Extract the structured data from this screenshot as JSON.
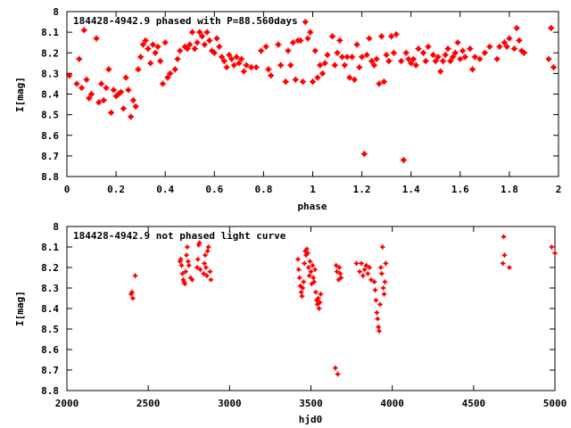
{
  "chart_data": [
    {
      "type": "scatter",
      "title": "184428-4942.9 phased with P=88.560days",
      "xlabel": "phase",
      "ylabel": "I[mag]",
      "xlim": [
        0,
        2
      ],
      "ylim": [
        8.8,
        8
      ],
      "y_inverted": true,
      "xticks": [
        0,
        0.2,
        0.4,
        0.6,
        0.8,
        1,
        1.2,
        1.4,
        1.6,
        1.8,
        2
      ],
      "xtick_labels": [
        "0",
        "0.2",
        "0.4",
        "0.6",
        "0.8",
        "1",
        "1.2",
        "1.4",
        "1.6",
        "1.8",
        "2"
      ],
      "yticks": [
        8,
        8.1,
        8.2,
        8.3,
        8.4,
        8.5,
        8.6,
        8.7,
        8.8
      ],
      "ytick_labels": [
        "8",
        "8.1",
        "8.2",
        "8.3",
        "8.4",
        "8.5",
        "8.6",
        "8.7",
        "8.8"
      ],
      "grid": false,
      "marker_color": "#ff0000",
      "series": [
        {
          "points": [
            [
              0.01,
              8.31
            ],
            [
              0.04,
              8.35
            ],
            [
              0.05,
              8.23
            ],
            [
              0.06,
              8.37
            ],
            [
              0.07,
              8.09
            ],
            [
              0.08,
              8.33
            ],
            [
              0.09,
              8.42
            ],
            [
              0.1,
              8.4
            ],
            [
              0.12,
              8.13
            ],
            [
              0.13,
              8.44
            ],
            [
              0.14,
              8.35
            ],
            [
              0.15,
              8.43
            ],
            [
              0.16,
              8.37
            ],
            [
              0.17,
              8.28
            ],
            [
              0.18,
              8.49
            ],
            [
              0.19,
              8.38
            ],
            [
              0.2,
              8.41
            ],
            [
              0.21,
              8.4
            ],
            [
              0.22,
              8.39
            ],
            [
              0.23,
              8.47
            ],
            [
              0.24,
              8.32
            ],
            [
              0.25,
              8.38
            ],
            [
              0.26,
              8.51
            ],
            [
              0.27,
              8.43
            ],
            [
              0.28,
              8.46
            ],
            [
              0.29,
              8.28
            ],
            [
              0.3,
              8.22
            ],
            [
              0.31,
              8.16
            ],
            [
              0.32,
              8.14
            ],
            [
              0.33,
              8.18
            ],
            [
              0.34,
              8.25
            ],
            [
              0.35,
              8.16
            ],
            [
              0.36,
              8.2
            ],
            [
              0.37,
              8.17
            ],
            [
              0.38,
              8.24
            ],
            [
              0.39,
              8.35
            ],
            [
              0.4,
              8.15
            ],
            [
              0.41,
              8.32
            ],
            [
              0.42,
              8.3
            ],
            [
              0.44,
              8.28
            ],
            [
              0.45,
              8.23
            ],
            [
              0.46,
              8.19
            ],
            [
              0.48,
              8.17
            ],
            [
              0.49,
              8.18
            ],
            [
              0.5,
              8.16
            ],
            [
              0.51,
              8.1
            ],
            [
              0.52,
              8.18
            ],
            [
              0.53,
              8.15
            ],
            [
              0.54,
              8.1
            ],
            [
              0.55,
              8.12
            ],
            [
              0.56,
              8.16
            ],
            [
              0.57,
              8.1
            ],
            [
              0.58,
              8.14
            ],
            [
              0.59,
              8.19
            ],
            [
              0.6,
              8.2
            ],
            [
              0.61,
              8.13
            ],
            [
              0.62,
              8.17
            ],
            [
              0.63,
              8.22
            ],
            [
              0.64,
              8.24
            ],
            [
              0.65,
              8.27
            ],
            [
              0.66,
              8.21
            ],
            [
              0.67,
              8.23
            ],
            [
              0.68,
              8.26
            ],
            [
              0.69,
              8.22
            ],
            [
              0.7,
              8.25
            ],
            [
              0.71,
              8.23
            ],
            [
              0.72,
              8.29
            ],
            [
              0.73,
              8.26
            ],
            [
              0.75,
              8.27
            ],
            [
              0.77,
              8.27
            ],
            [
              0.79,
              8.19
            ],
            [
              0.81,
              8.17
            ],
            [
              0.82,
              8.28
            ],
            [
              0.83,
              8.31
            ],
            [
              0.86,
              8.16
            ],
            [
              0.87,
              8.26
            ],
            [
              0.89,
              8.34
            ],
            [
              0.9,
              8.19
            ],
            [
              0.91,
              8.26
            ],
            [
              0.92,
              8.15
            ],
            [
              0.93,
              8.33
            ],
            [
              0.94,
              8.14
            ],
            [
              0.95,
              8.14
            ],
            [
              0.96,
              8.34
            ],
            [
              0.97,
              8.05
            ],
            [
              0.98,
              8.13
            ],
            [
              0.99,
              8.1
            ],
            [
              1.0,
              8.34
            ],
            [
              1.01,
              8.19
            ],
            [
              1.02,
              8.32
            ],
            [
              1.03,
              8.26
            ],
            [
              1.04,
              8.3
            ],
            [
              1.05,
              8.25
            ],
            [
              1.06,
              8.21
            ],
            [
              1.08,
              8.12
            ],
            [
              1.09,
              8.26
            ],
            [
              1.1,
              8.2
            ],
            [
              1.11,
              8.14
            ],
            [
              1.12,
              8.22
            ],
            [
              1.13,
              8.26
            ],
            [
              1.14,
              8.22
            ],
            [
              1.15,
              8.32
            ],
            [
              1.16,
              8.22
            ],
            [
              1.17,
              8.33
            ],
            [
              1.18,
              8.16
            ],
            [
              1.19,
              8.27
            ],
            [
              1.2,
              8.22
            ],
            [
              1.21,
              8.69
            ],
            [
              1.22,
              8.21
            ],
            [
              1.23,
              8.13
            ],
            [
              1.24,
              8.24
            ],
            [
              1.25,
              8.26
            ],
            [
              1.26,
              8.23
            ],
            [
              1.27,
              8.35
            ],
            [
              1.28,
              8.12
            ],
            [
              1.29,
              8.34
            ],
            [
              1.3,
              8.21
            ],
            [
              1.31,
              8.24
            ],
            [
              1.32,
              8.12
            ],
            [
              1.33,
              8.2
            ],
            [
              1.34,
              8.11
            ],
            [
              1.36,
              8.24
            ],
            [
              1.37,
              8.72
            ],
            [
              1.38,
              8.2
            ],
            [
              1.39,
              8.23
            ],
            [
              1.4,
              8.25
            ],
            [
              1.41,
              8.23
            ],
            [
              1.42,
              8.26
            ],
            [
              1.43,
              8.18
            ],
            [
              1.45,
              8.2
            ],
            [
              1.46,
              8.24
            ],
            [
              1.47,
              8.17
            ],
            [
              1.49,
              8.21
            ],
            [
              1.5,
              8.24
            ],
            [
              1.51,
              8.22
            ],
            [
              1.52,
              8.29
            ],
            [
              1.53,
              8.24
            ],
            [
              1.54,
              8.21
            ],
            [
              1.55,
              8.18
            ],
            [
              1.56,
              8.24
            ],
            [
              1.57,
              8.22
            ],
            [
              1.58,
              8.2
            ],
            [
              1.59,
              8.15
            ],
            [
              1.6,
              8.23
            ],
            [
              1.61,
              8.19
            ],
            [
              1.62,
              8.22
            ],
            [
              1.64,
              8.18
            ],
            [
              1.65,
              8.28
            ],
            [
              1.66,
              8.22
            ],
            [
              1.68,
              8.23
            ],
            [
              1.7,
              8.2
            ],
            [
              1.72,
              8.17
            ],
            [
              1.75,
              8.23
            ],
            [
              1.76,
              8.17
            ],
            [
              1.78,
              8.15
            ],
            [
              1.79,
              8.17
            ],
            [
              1.8,
              8.13
            ],
            [
              1.82,
              8.18
            ],
            [
              1.83,
              8.08
            ],
            [
              1.84,
              8.14
            ],
            [
              1.85,
              8.19
            ],
            [
              1.86,
              8.2
            ],
            [
              1.96,
              8.23
            ],
            [
              1.97,
              8.08
            ],
            [
              1.98,
              8.27
            ]
          ]
        }
      ]
    },
    {
      "type": "scatter",
      "title": "184428-4942.9 not phased light curve",
      "xlabel": "hjd0",
      "ylabel": "I[mag]",
      "xlim": [
        2000,
        5000
      ],
      "ylim": [
        8.8,
        8
      ],
      "y_inverted": true,
      "xticks": [
        2000,
        2500,
        3000,
        3500,
        4000,
        4500,
        5000
      ],
      "xtick_labels": [
        "2000",
        "2500",
        "3000",
        "3500",
        "4000",
        "4500",
        "5000"
      ],
      "yticks": [
        8,
        8.1,
        8.2,
        8.3,
        8.4,
        8.5,
        8.6,
        8.7,
        8.8
      ],
      "ytick_labels": [
        "8",
        "8.1",
        "8.2",
        "8.3",
        "8.4",
        "8.5",
        "8.6",
        "8.7",
        "8.8"
      ],
      "grid": false,
      "marker_color": "#ff0000",
      "series": [
        {
          "points": [
            [
              2395,
              8.33
            ],
            [
              2400,
              8.32
            ],
            [
              2405,
              8.35
            ],
            [
              2420,
              8.24
            ],
            [
              2695,
              8.17
            ],
            [
              2700,
              8.16
            ],
            [
              2705,
              8.19
            ],
            [
              2710,
              8.23
            ],
            [
              2715,
              8.26
            ],
            [
              2720,
              8.27
            ],
            [
              2725,
              8.28
            ],
            [
              2730,
              8.22
            ],
            [
              2735,
              8.14
            ],
            [
              2740,
              8.1
            ],
            [
              2745,
              8.17
            ],
            [
              2750,
              8.19
            ],
            [
              2760,
              8.25
            ],
            [
              2770,
              8.26
            ],
            [
              2800,
              8.2
            ],
            [
              2805,
              8.16
            ],
            [
              2810,
              8.09
            ],
            [
              2815,
              8.08
            ],
            [
              2820,
              8.21
            ],
            [
              2840,
              8.23
            ],
            [
              2845,
              8.18
            ],
            [
              2850,
              8.14
            ],
            [
              2855,
              8.2
            ],
            [
              2860,
              8.24
            ],
            [
              2865,
              8.12
            ],
            [
              2870,
              8.1
            ],
            [
              2880,
              8.22
            ],
            [
              2885,
              8.26
            ],
            [
              3420,
              8.16
            ],
            [
              3425,
              8.21
            ],
            [
              3430,
              8.25
            ],
            [
              3435,
              8.29
            ],
            [
              3440,
              8.32
            ],
            [
              3445,
              8.34
            ],
            [
              3450,
              8.3
            ],
            [
              3455,
              8.27
            ],
            [
              3460,
              8.18
            ],
            [
              3465,
              8.12
            ],
            [
              3470,
              8.14
            ],
            [
              3475,
              8.11
            ],
            [
              3480,
              8.13
            ],
            [
              3485,
              8.2
            ],
            [
              3490,
              8.24
            ],
            [
              3495,
              8.17
            ],
            [
              3500,
              8.22
            ],
            [
              3505,
              8.28
            ],
            [
              3510,
              8.19
            ],
            [
              3515,
              8.25
            ],
            [
              3520,
              8.27
            ],
            [
              3525,
              8.21
            ],
            [
              3530,
              8.32
            ],
            [
              3535,
              8.36
            ],
            [
              3540,
              8.38
            ],
            [
              3545,
              8.35
            ],
            [
              3550,
              8.4
            ],
            [
              3555,
              8.37
            ],
            [
              3560,
              8.33
            ],
            [
              3650,
              8.69
            ],
            [
              3655,
              8.19
            ],
            [
              3660,
              8.22
            ],
            [
              3665,
              8.72
            ],
            [
              3670,
              8.26
            ],
            [
              3675,
              8.2
            ],
            [
              3680,
              8.23
            ],
            [
              3685,
              8.25
            ],
            [
              3780,
              8.18
            ],
            [
              3800,
              8.22
            ],
            [
              3810,
              8.18
            ],
            [
              3820,
              8.24
            ],
            [
              3830,
              8.21
            ],
            [
              3840,
              8.19
            ],
            [
              3850,
              8.23
            ],
            [
              3860,
              8.2
            ],
            [
              3870,
              8.26
            ],
            [
              3890,
              8.27
            ],
            [
              3895,
              8.31
            ],
            [
              3900,
              8.36
            ],
            [
              3905,
              8.42
            ],
            [
              3910,
              8.45
            ],
            [
              3915,
              8.49
            ],
            [
              3920,
              8.51
            ],
            [
              3925,
              8.38
            ],
            [
              3930,
              8.2
            ],
            [
              3935,
              8.23
            ],
            [
              3940,
              8.1
            ],
            [
              3945,
              8.3
            ],
            [
              3950,
              8.33
            ],
            [
              3955,
              8.27
            ],
            [
              3960,
              8.18
            ],
            [
              4680,
              8.18
            ],
            [
              4685,
              8.05
            ],
            [
              4690,
              8.14
            ],
            [
              4720,
              8.2
            ],
            [
              4980,
              8.1
            ],
            [
              5000,
              8.13
            ]
          ]
        }
      ]
    }
  ]
}
